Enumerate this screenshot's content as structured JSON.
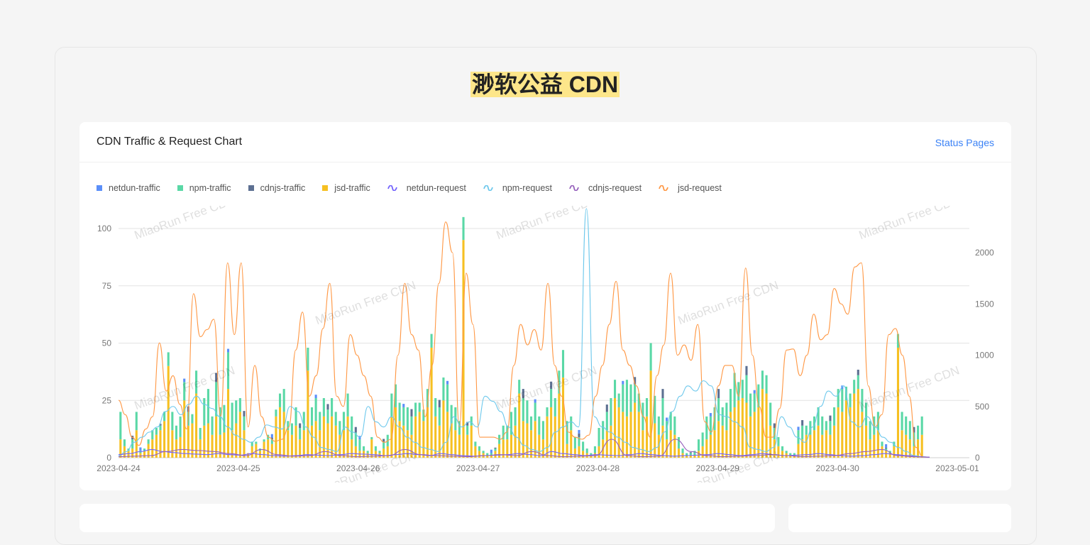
{
  "page": {
    "title": "渺软公益 CDN"
  },
  "card": {
    "title": "CDN Traffic & Request Chart",
    "link": "Status Pages"
  },
  "watermark": "MiaoRun Free CDN",
  "colors": {
    "netdun_traffic": "#5b8ff9",
    "npm_traffic": "#5ad8a6",
    "cdnjs_traffic": "#5d7092",
    "jsd_traffic": "#f6c022",
    "netdun_request": "#7262fd",
    "npm_request": "#6dc8ec",
    "cdnjs_request": "#9661bc",
    "jsd_request": "#ff9845"
  },
  "chart_data": {
    "type": "bar",
    "stacked": true,
    "legend_position": "top-left",
    "grid": true,
    "x_ticks": [
      "2023-04-24",
      "2023-04-25",
      "2023-04-26",
      "2023-04-27",
      "2023-04-28",
      "2023-04-29",
      "2023-04-30",
      "2023-05-01"
    ],
    "y_left": {
      "ticks": [
        0,
        25,
        50,
        75,
        100
      ],
      "range": [
        0,
        108
      ]
    },
    "y_right": {
      "ticks": [
        0,
        500,
        1000,
        1500,
        2000
      ],
      "range": [
        0,
        2430
      ]
    },
    "legend": [
      {
        "name": "netdun-traffic",
        "kind": "bar"
      },
      {
        "name": "npm-traffic",
        "kind": "bar"
      },
      {
        "name": "cdnjs-traffic",
        "kind": "bar"
      },
      {
        "name": "jsd-traffic",
        "kind": "bar"
      },
      {
        "name": "netdun-request",
        "kind": "line"
      },
      {
        "name": "npm-request",
        "kind": "line"
      },
      {
        "name": "cdnjs-request",
        "kind": "line"
      },
      {
        "name": "jsd-request",
        "kind": "line"
      }
    ],
    "jsd_traffic": [
      8,
      5,
      3,
      4,
      12,
      2,
      3,
      6,
      8,
      10,
      12,
      16,
      40,
      12,
      8,
      9,
      25,
      14,
      15,
      28,
      8,
      14,
      15,
      10,
      18,
      10,
      11,
      30,
      12,
      15,
      20,
      12,
      2,
      5,
      6,
      3,
      7,
      8,
      6,
      18,
      22,
      20,
      12,
      10,
      14,
      8,
      12,
      38,
      14,
      16,
      12,
      18,
      15,
      18,
      14,
      10,
      12,
      18,
      8,
      5,
      3,
      3,
      2,
      8,
      3,
      2,
      4,
      5,
      18,
      22,
      16,
      14,
      12,
      10,
      18,
      20,
      16,
      22,
      48,
      18,
      14,
      25,
      20,
      15,
      12,
      10,
      95,
      10,
      14,
      5,
      3,
      2,
      1,
      1,
      3,
      6,
      8,
      8,
      10,
      14,
      28,
      16,
      15,
      12,
      16,
      10,
      8,
      18,
      22,
      18,
      28,
      35,
      6,
      12,
      4,
      5,
      3,
      2,
      1,
      2,
      5,
      8,
      12,
      14,
      26,
      22,
      20,
      18,
      20,
      24,
      20,
      12,
      18,
      38,
      15,
      10,
      14,
      8,
      12,
      10,
      4,
      2,
      1,
      1,
      1,
      3,
      5,
      8,
      10,
      12,
      16,
      14,
      12,
      20,
      22,
      25,
      26,
      24,
      18,
      20,
      22,
      30,
      28,
      14,
      8,
      5,
      3,
      2,
      1,
      1,
      6,
      8,
      10,
      10,
      12,
      14,
      10,
      12,
      10,
      14,
      22,
      20,
      25,
      22,
      28,
      30,
      20,
      14,
      8,
      10,
      12,
      5,
      3,
      2,
      5,
      48,
      12,
      10,
      8,
      5,
      8,
      10
    ],
    "npm_traffic": [
      12,
      3,
      1,
      4,
      8,
      1,
      1,
      2,
      4,
      3,
      2,
      4,
      6,
      8,
      6,
      9,
      8,
      6,
      4,
      10,
      5,
      12,
      15,
      8,
      15,
      12,
      12,
      16,
      12,
      10,
      6,
      6,
      0,
      2,
      1,
      1,
      1,
      2,
      2,
      3,
      6,
      10,
      4,
      5,
      8,
      5,
      8,
      10,
      8,
      10,
      8,
      8,
      6,
      8,
      6,
      6,
      8,
      10,
      10,
      6,
      5,
      2,
      1,
      1,
      2,
      1,
      3,
      5,
      10,
      10,
      8,
      8,
      10,
      8,
      6,
      4,
      5,
      8,
      6,
      8,
      8,
      10,
      12,
      8,
      10,
      6,
      10,
      4,
      4,
      2,
      2,
      1,
      1,
      1,
      1,
      4,
      6,
      6,
      10,
      8,
      6,
      10,
      10,
      6,
      8,
      8,
      8,
      4,
      8,
      8,
      10,
      12,
      10,
      6,
      5,
      4,
      4,
      2,
      1,
      3,
      8,
      8,
      8,
      12,
      8,
      6,
      12,
      16,
      12,
      8,
      8,
      12,
      8,
      12,
      12,
      8,
      12,
      8,
      8,
      8,
      5,
      2,
      1,
      1,
      2,
      5,
      6,
      10,
      8,
      10,
      10,
      8,
      12,
      10,
      15,
      8,
      8,
      12,
      10,
      8,
      10,
      8,
      8,
      10,
      5,
      4,
      2,
      1,
      1,
      1,
      6,
      6,
      4,
      6,
      6,
      8,
      8,
      4,
      6,
      8,
      8,
      10,
      6,
      6,
      6,
      6,
      10,
      10,
      8,
      8,
      8,
      2,
      1,
      1,
      2,
      6,
      8,
      8,
      8,
      6,
      6,
      8
    ]
  }
}
